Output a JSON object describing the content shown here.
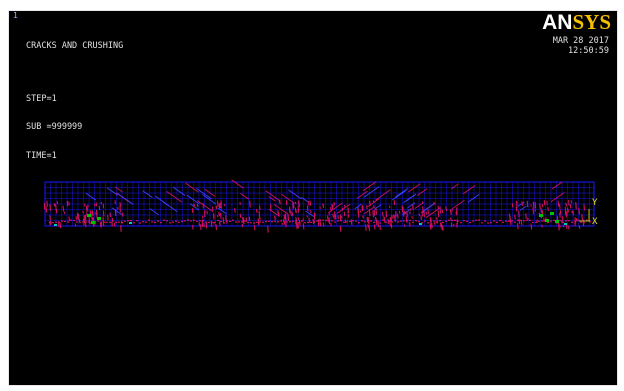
{
  "viewport": {
    "window_number": "1",
    "title": "CRACKS AND CRUSHING",
    "step": "STEP=1",
    "sub": "SUB =999999",
    "time": "TIME=1",
    "date": "MAR 28 2017",
    "clock": "12:50:59"
  },
  "logo": {
    "part1": "AN",
    "part2": "SYS"
  },
  "triad": {
    "y_label": "Y",
    "x_label": "X"
  },
  "colors": {
    "background": "#000000",
    "mesh": "#1a1aff",
    "cracks": "#d0105a",
    "crush": "#00c000",
    "accent": "#00c8c8",
    "triad": "#f0e000"
  }
}
